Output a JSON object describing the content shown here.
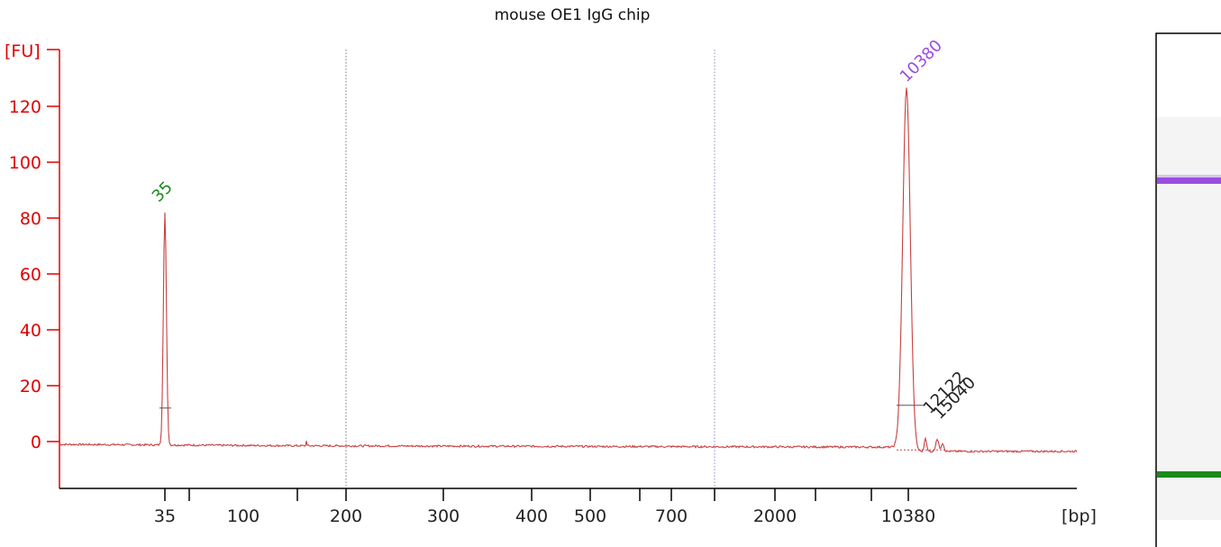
{
  "chart_data": {
    "type": "line",
    "title": "mouse OE1 IgG chip",
    "ylabel": "[FU]",
    "xlabel": "[bp]",
    "ylim": [
      -18,
      140
    ],
    "y_ticks": [
      0,
      20,
      40,
      60,
      80,
      100,
      120
    ],
    "x_tick_labels": [
      "35",
      "100",
      "200",
      "300",
      "400",
      "500",
      "700",
      "2000",
      "10380"
    ],
    "peaks": [
      {
        "label": "35",
        "size_bp": 35,
        "height_fu": 82,
        "color": "#1a8a1a"
      },
      {
        "label": "10380",
        "size_bp": 10380,
        "height_fu": 127,
        "color": "#9b4de0"
      },
      {
        "label": "12122",
        "size_bp": 12122,
        "height_fu": 5,
        "color": "#222222"
      },
      {
        "label": "15040",
        "size_bp": 15040,
        "height_fu": 4,
        "color": "#222222"
      }
    ],
    "baseline_fu": -1,
    "colors": {
      "axis": "#e00000",
      "trace": "#c84040",
      "lower_marker": "#1a8a1a",
      "upper_marker": "#9b4de0"
    }
  },
  "gel": {
    "bands": [
      {
        "name": "upper-marker-band",
        "color": "#9b4de0"
      },
      {
        "name": "lower-marker-band",
        "color": "#1a8a1a"
      }
    ]
  }
}
